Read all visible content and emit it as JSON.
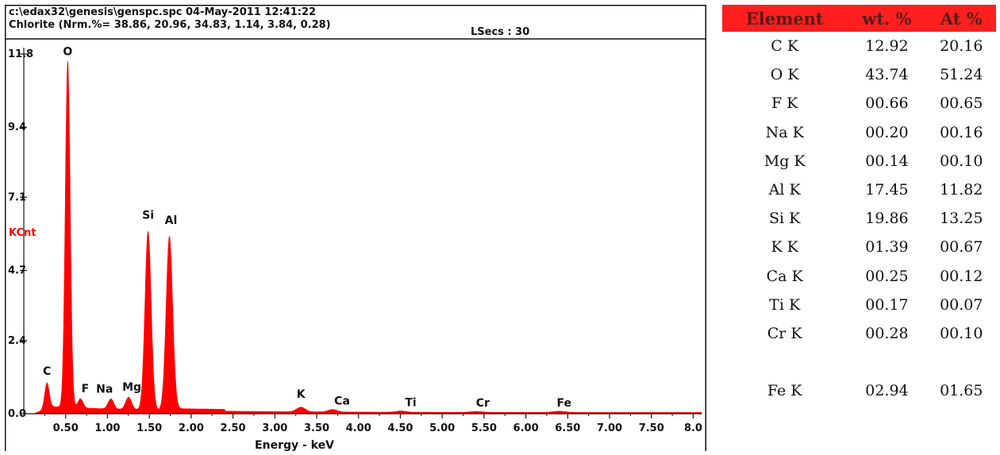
{
  "header": {
    "file_line": "c:\\edax32\\genesis\\genspc.spc  04-May-2011 12:41:22",
    "sample_line": "Chlorite (Nrm.%= 38.86, 20.96, 34.83, 1.14, 3.84, 0.28)",
    "lsecs": "LSecs : 30"
  },
  "colors": {
    "spectrum": "#ff0000",
    "header_bg": "#ff1f1f",
    "header_text": "#5a1a1a",
    "ylabel": "#ff0000"
  },
  "chart_data": {
    "type": "area",
    "xlabel": "Energy - keV",
    "ylabel": "KCnt",
    "xlim": [
      0,
      8.1
    ],
    "ylim": [
      0,
      11.8
    ],
    "x_ticks": [
      0.5,
      1.0,
      1.5,
      2.0,
      2.5,
      3.0,
      3.5,
      4.0,
      4.5,
      5.0,
      5.5,
      6.0,
      6.5,
      7.0,
      7.5,
      8.0
    ],
    "x_tick_labels": [
      "0.50",
      "1.00",
      "1.50",
      "2.00",
      "2.50",
      "3.00",
      "3.50",
      "4.00",
      "4.50",
      "5.00",
      "5.50",
      "6.00",
      "6.50",
      "7.00",
      "7.50",
      "8.0"
    ],
    "y_ticks": [
      0.0,
      2.4,
      4.7,
      7.1,
      9.4,
      11.8
    ],
    "y_tick_labels": [
      "0.0",
      "2.4",
      "4.7",
      "7.1",
      "9.4",
      "11.8"
    ],
    "peaks": [
      {
        "element": "C",
        "energy": 0.277,
        "counts": 0.85
      },
      {
        "element": "O",
        "energy": 0.525,
        "counts": 11.35
      },
      {
        "element": "F",
        "energy": 0.677,
        "counts": 0.3
      },
      {
        "element": "Na",
        "energy": 1.041,
        "counts": 0.33
      },
      {
        "element": "Mg",
        "energy": 1.253,
        "counts": 0.4
      },
      {
        "element": "Si",
        "energy": 1.485,
        "counts": 5.85
      },
      {
        "element": "Al",
        "energy": 1.74,
        "counts": 5.7
      },
      {
        "element": "K",
        "energy": 3.312,
        "counts": 0.15
      },
      {
        "element": "Ca",
        "energy": 3.69,
        "counts": 0.08
      },
      {
        "element": "Ti",
        "energy": 4.51,
        "counts": 0.04
      },
      {
        "element": "Cr",
        "energy": 5.41,
        "counts": 0.03
      },
      {
        "element": "Fe",
        "energy": 6.4,
        "counts": 0.04
      }
    ]
  },
  "table": {
    "headers": [
      "Element",
      "wt. %",
      "At %"
    ],
    "rows": [
      {
        "element": "C K",
        "wt": "12.92",
        "at": "20.16"
      },
      {
        "element": "O K",
        "wt": "43.74",
        "at": "51.24"
      },
      {
        "element": "F K",
        "wt": "00.66",
        "at": "00.65"
      },
      {
        "element": "Na K",
        "wt": "00.20",
        "at": "00.16"
      },
      {
        "element": "Mg K",
        "wt": "00.14",
        "at": "00.10"
      },
      {
        "element": "Al K",
        "wt": "17.45",
        "at": "11.82"
      },
      {
        "element": "Si K",
        "wt": "19.86",
        "at": "13.25"
      },
      {
        "element": "K K",
        "wt": "01.39",
        "at": "00.67"
      },
      {
        "element": "Ca K",
        "wt": "00.25",
        "at": "00.12"
      },
      {
        "element": "Ti K",
        "wt": "00.17",
        "at": "00.07"
      },
      {
        "element": "Cr K",
        "wt": "00.28",
        "at": "00.10"
      },
      {
        "element": "Fe K",
        "wt": "02.94",
        "at": "01.65"
      }
    ]
  }
}
